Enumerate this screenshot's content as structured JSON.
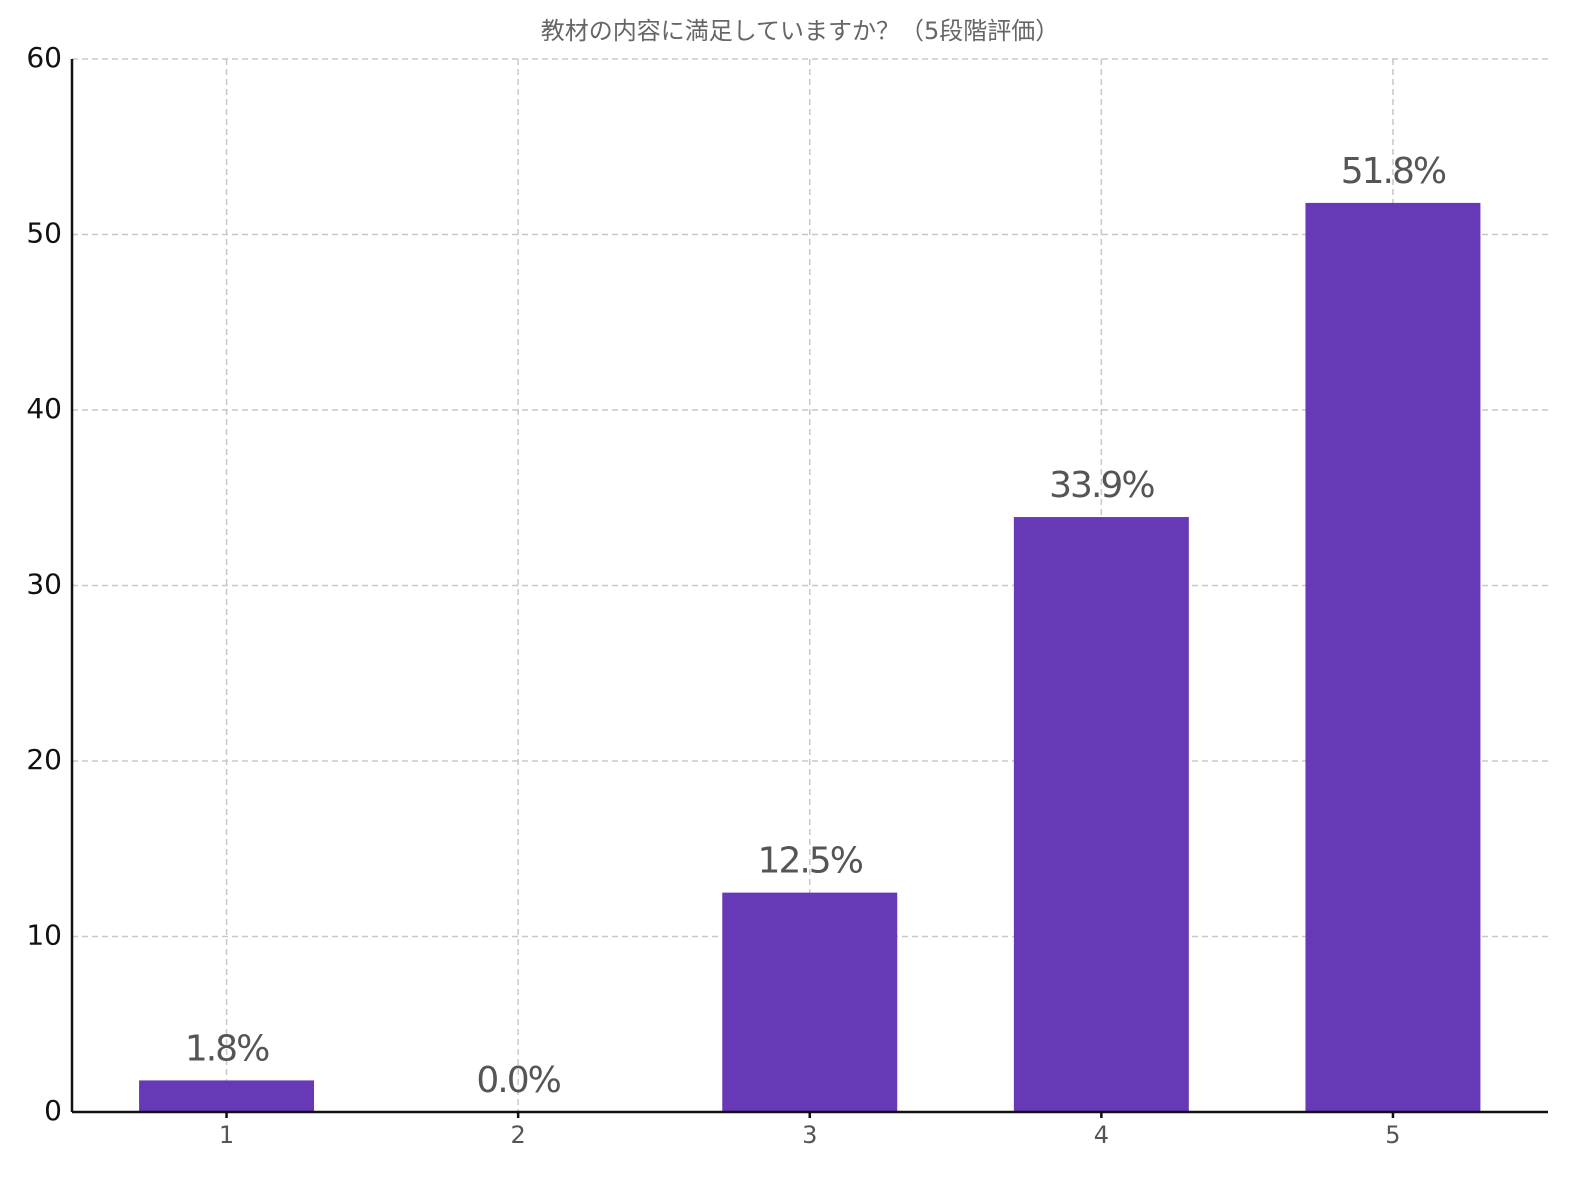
{
  "chart_data": {
    "type": "bar",
    "title": "教材の内容に満足していますか？（5段階評価）",
    "categories": [
      "1",
      "2",
      "3",
      "4",
      "5"
    ],
    "values": [
      1.8,
      0.0,
      12.5,
      33.9,
      51.8
    ],
    "value_labels": [
      "1.8%",
      "0.0%",
      "12.5%",
      "33.9%",
      "51.8%"
    ],
    "color": "#6739b7",
    "ylim": [
      0,
      60
    ],
    "yticks": [
      0,
      10,
      20,
      30,
      40,
      50,
      60
    ],
    "grid": true
  }
}
